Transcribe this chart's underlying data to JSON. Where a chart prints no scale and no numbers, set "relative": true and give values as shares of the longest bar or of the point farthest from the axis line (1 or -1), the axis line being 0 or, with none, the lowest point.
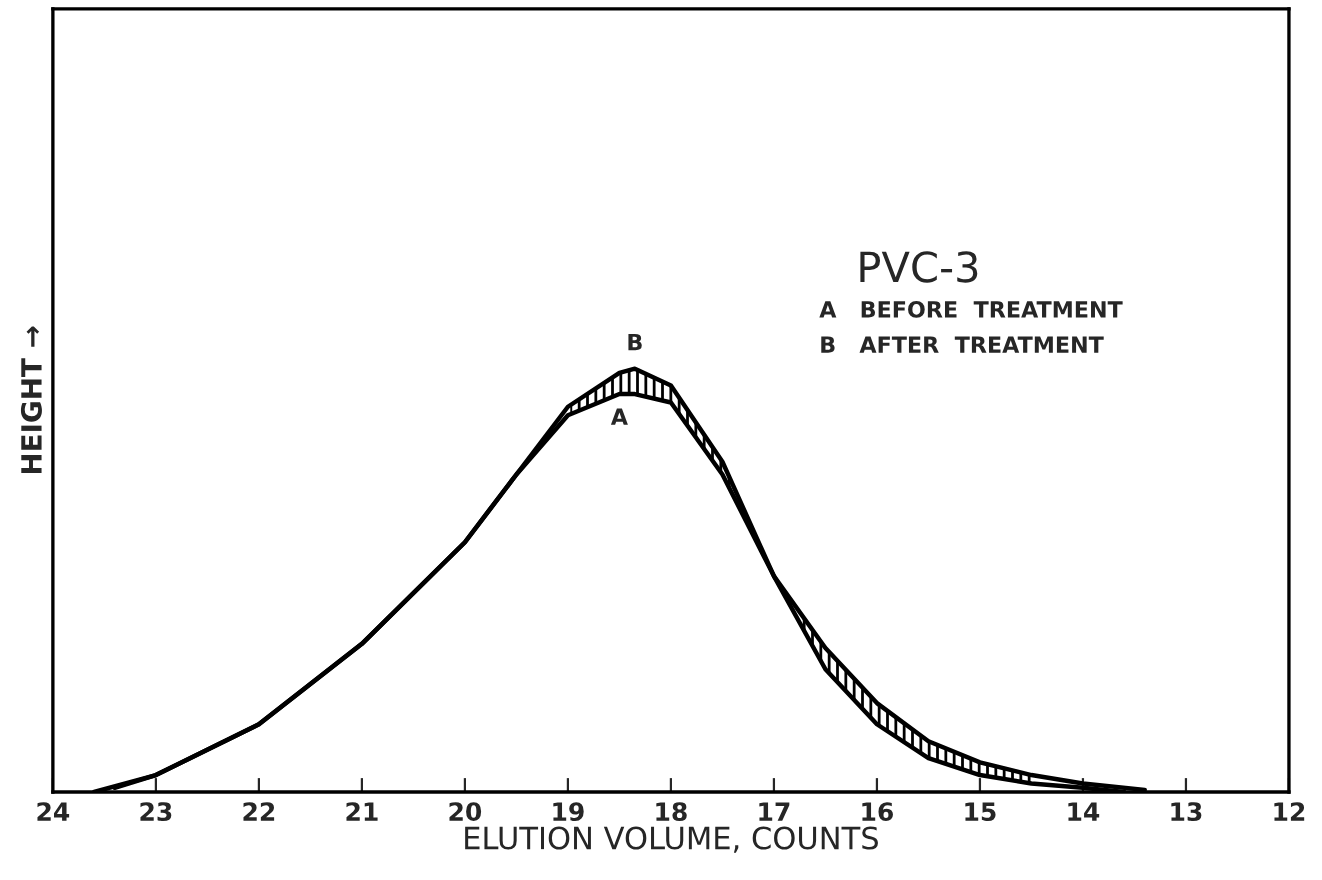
{
  "chart_data": {
    "type": "line",
    "relative": true,
    "xlabel": "ELUTION VOLUME, COUNTS",
    "ylabel": "HEIGHT →",
    "x": [
      23.6,
      23,
      22,
      21,
      20,
      19.5,
      19,
      18.5,
      18.35,
      18,
      17.5,
      17,
      16.5,
      16,
      15.5,
      15,
      14.5,
      14,
      13.6
    ],
    "series": [
      {
        "color": "#000000",
        "values": [
          0,
          0.04,
          0.16,
          0.35,
          0.59,
          0.75,
          0.89,
          0.94,
          0.94,
          0.92,
          0.75,
          0.51,
          0.29,
          0.16,
          0.08,
          0.04,
          0.02,
          0.01,
          0
        ]
      },
      {
        "color": "#000000",
        "x": [
          23.4,
          23,
          22,
          21,
          20,
          19.5,
          19,
          18.5,
          18.35,
          18,
          17.5,
          17,
          16.5,
          16,
          15.5,
          15,
          14.5,
          14,
          13.4
        ],
        "values": [
          0.01,
          0.04,
          0.16,
          0.35,
          0.59,
          0.75,
          0.91,
          0.99,
          1,
          0.96,
          0.78,
          0.51,
          0.34,
          0.21,
          0.12,
          0.07,
          0.04,
          0.02,
          0.005
        ]
      }
    ],
    "xlim": [
      24,
      12
    ],
    "xticks": [
      24,
      23,
      22,
      21,
      20,
      19,
      18,
      17,
      16,
      15,
      14,
      13,
      12
    ],
    "annotations": [
      {
        "text": "A",
        "x": 18.5,
        "y": 0.94
      },
      {
        "text": "B",
        "x": 18.35,
        "y": 1
      },
      "PVC-3",
      "A   BEFORE  TREATMENT",
      "B   AFTER  TREATMENT"
    ],
    "grid": false,
    "marker": "none",
    "line_style": "solid"
  }
}
